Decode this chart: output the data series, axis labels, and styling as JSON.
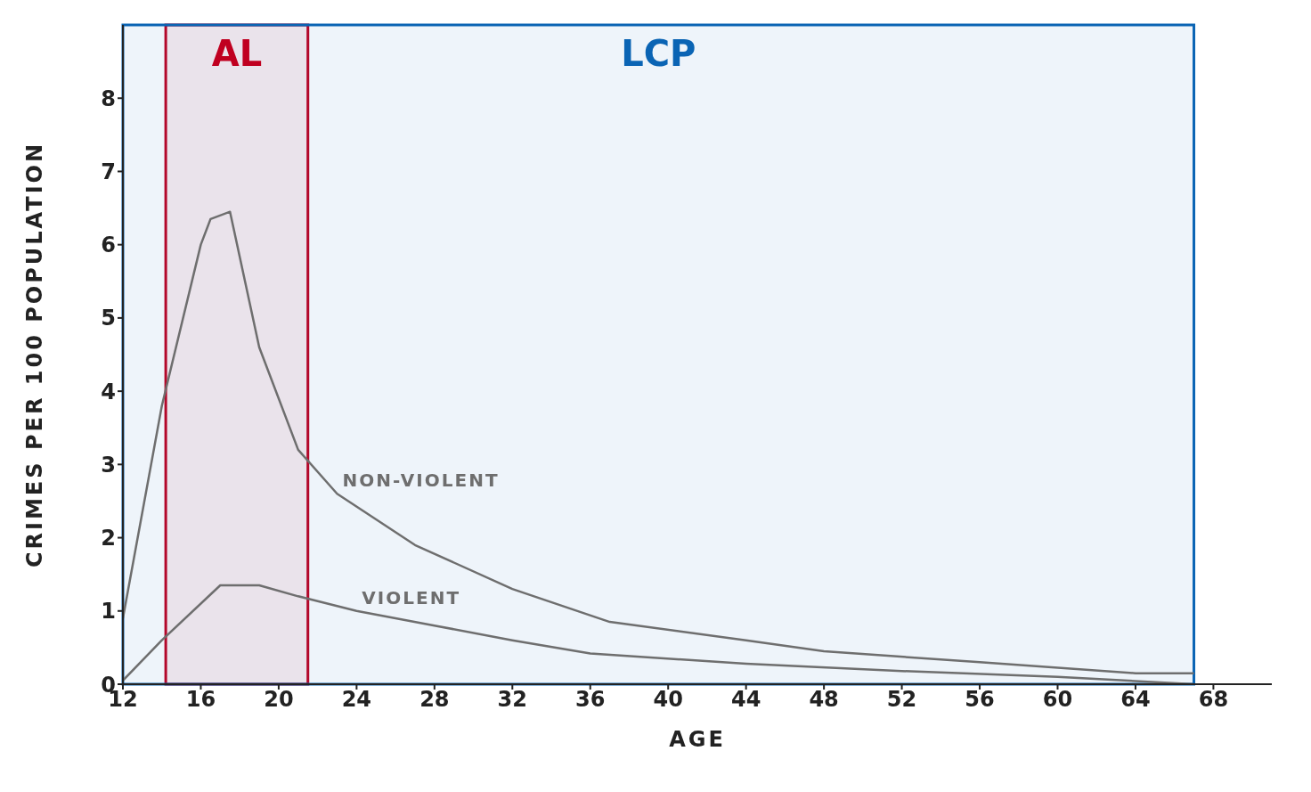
{
  "chart_data": {
    "type": "line",
    "xlabel": "AGE",
    "ylabel": "CRIMES PER 100 POPULATION",
    "xlim": [
      12,
      71
    ],
    "xticks": [
      12,
      16,
      20,
      24,
      28,
      32,
      36,
      40,
      44,
      48,
      52,
      56,
      60,
      64,
      68
    ],
    "ylim": [
      0,
      9
    ],
    "yticks": [
      0,
      1,
      2,
      3,
      4,
      5,
      6,
      7,
      8
    ],
    "grid": false,
    "marker": "none",
    "line_style": "solid",
    "series": [
      {
        "name": "NON-VIOLENT",
        "color": "#6e6e6e",
        "x": [
          12,
          14,
          16,
          16.5,
          17.5,
          19,
          21,
          23,
          27,
          32,
          37,
          44,
          48,
          56,
          64,
          67
        ],
        "values": [
          0.9,
          3.8,
          6.0,
          6.35,
          6.45,
          4.6,
          3.2,
          2.6,
          1.9,
          1.3,
          0.85,
          0.6,
          0.45,
          0.3,
          0.15,
          0.15
        ]
      },
      {
        "name": "VIOLENT",
        "color": "#6e6e6e",
        "x": [
          12,
          14,
          17,
          19,
          21,
          24,
          28,
          32,
          36,
          44,
          52,
          60,
          67
        ],
        "values": [
          0.05,
          0.6,
          1.35,
          1.35,
          1.2,
          1.0,
          0.8,
          0.6,
          0.42,
          0.28,
          0.18,
          0.1,
          0.0
        ]
      }
    ],
    "bands": [
      {
        "axis": "x",
        "from": 14.2,
        "to": 21.5,
        "label": "AL",
        "color": "#c00020"
      },
      {
        "axis": "x",
        "from": 12,
        "to": 67,
        "label": "LCP",
        "color": "#0a64b4"
      }
    ]
  }
}
